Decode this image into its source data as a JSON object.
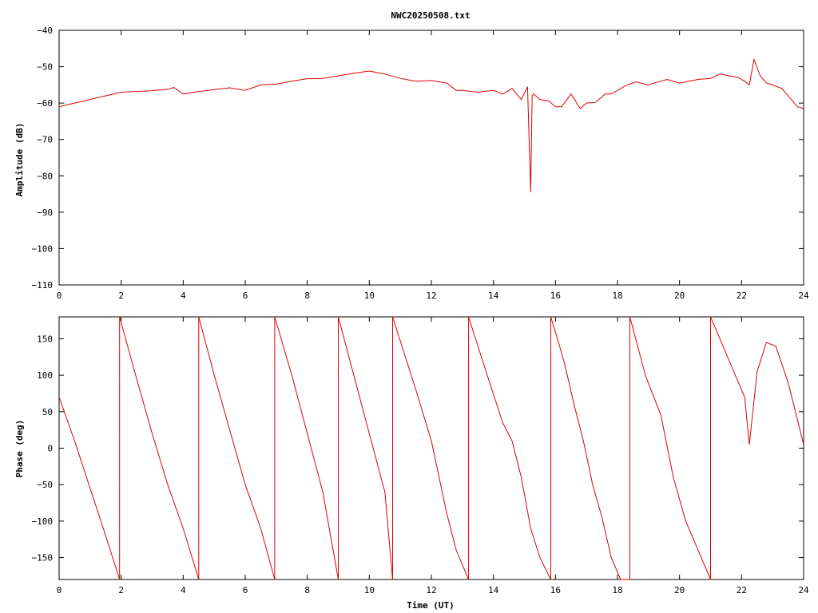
{
  "title": "NWC20250508.txt",
  "colors": {
    "series": "#dd0000",
    "axes": "#000000",
    "background": "#ffffff"
  },
  "chart_data": [
    {
      "type": "line",
      "title": "NWC20250508.txt",
      "xlabel": "",
      "ylabel": "Amplitude (dB)",
      "xlim": [
        0,
        24
      ],
      "ylim": [
        -110,
        -40
      ],
      "xticks": [
        "0",
        "2",
        "4",
        "6",
        "8",
        "10",
        "12",
        "14",
        "16",
        "18",
        "20",
        "22",
        "24"
      ],
      "yticks": [
        "−40",
        "−50",
        "−60",
        "−70",
        "−80",
        "−90",
        "−100",
        "−110"
      ],
      "grid": false,
      "legend": "none",
      "series": [
        {
          "x": [
            0,
            0.5,
            1,
            1.5,
            2,
            2.5,
            3,
            3.5,
            3.7,
            4,
            4.5,
            5,
            5.5,
            6,
            6.5,
            7,
            7.5,
            8,
            8.5,
            9,
            9.5,
            10,
            10.5,
            11,
            11.5,
            12,
            12.5,
            12.8,
            13,
            13.5,
            14,
            14.3,
            14.6,
            14.9,
            15.1,
            15.2,
            15.25,
            15.3,
            15.5,
            15.8,
            16,
            16.2,
            16.5,
            16.8,
            17,
            17.3,
            17.6,
            17.8,
            18,
            18.3,
            18.6,
            19,
            19.3,
            19.6,
            20,
            20.3,
            20.6,
            21,
            21.3,
            21.6,
            21.9,
            22.1,
            22.25,
            22.4,
            22.6,
            22.8,
            23,
            23.3,
            23.6,
            23.8,
            24
          ],
          "y": [
            -61,
            -60,
            -59,
            -58,
            -57,
            -56.8,
            -56.6,
            -56.2,
            -55.7,
            -57.5,
            -56.8,
            -56.3,
            -55.8,
            -56.5,
            -55,
            -54.8,
            -54,
            -53.3,
            -53.2,
            -52.5,
            -51.8,
            -51.2,
            -52,
            -53.2,
            -54,
            -53.8,
            -54.5,
            -56.5,
            -56.5,
            -57,
            -56.5,
            -57.5,
            -56,
            -59,
            -55.5,
            -84.5,
            -58,
            -57.5,
            -59,
            -59.5,
            -61,
            -61,
            -57.5,
            -61.5,
            -60,
            -59.8,
            -57.5,
            -57.5,
            -56.5,
            -55,
            -54.2,
            -55,
            -54.2,
            -53.5,
            -54.5,
            -54,
            -53.5,
            -53.2,
            -52,
            -52.5,
            -53,
            -54,
            -55,
            -48,
            -52.5,
            -54.5,
            -55,
            -56,
            -59,
            -61,
            -61.5
          ]
        }
      ]
    },
    {
      "type": "line",
      "title": "",
      "xlabel": "Time (UT)",
      "ylabel": "Phase (deg)",
      "xlim": [
        0,
        24
      ],
      "ylim": [
        -180,
        180
      ],
      "xticks": [
        "0",
        "2",
        "4",
        "6",
        "8",
        "10",
        "12",
        "14",
        "16",
        "18",
        "20",
        "22",
        "24"
      ],
      "yticks": [
        "150",
        "100",
        "50",
        "0",
        "−50",
        "−100",
        "−150"
      ],
      "grid": false,
      "legend": "none",
      "series": [
        {
          "x": [
            0,
            0.5,
            1,
            1.5,
            1.95,
            1.95,
            2.5,
            3,
            3.5,
            4,
            4.5,
            4.5,
            5,
            5.5,
            6,
            6.5,
            6.95,
            6.95,
            7.5,
            8,
            8.5,
            9.0,
            9.0,
            9.5,
            10,
            10.5,
            10.75,
            10.75,
            11.5,
            12,
            12.5,
            12.8,
            13.2,
            13.2,
            13.8,
            14.3,
            14.6,
            14.9,
            15.2,
            15.5,
            15.85,
            15.85,
            16.1,
            16.3,
            16.6,
            16.9,
            17.2,
            17.5,
            17.8,
            18.1,
            18.4,
            18.4,
            18.9,
            19.4,
            19.8,
            20.2,
            20.6,
            21.0,
            21.0,
            21.1,
            21.5,
            21.9,
            22.1,
            22.25,
            22.5,
            22.8,
            23.1,
            23.5,
            24
          ],
          "y": [
            70,
            10,
            -55,
            -120,
            -180,
            180,
            95,
            20,
            -50,
            -110,
            -180,
            180,
            100,
            25,
            -50,
            -110,
            -180,
            180,
            100,
            20,
            -60,
            -180,
            180,
            100,
            20,
            -60,
            -180,
            180,
            80,
            10,
            -90,
            -140,
            -180,
            180,
            100,
            35,
            10,
            -40,
            -110,
            -150,
            -180,
            180,
            145,
            115,
            60,
            10,
            -50,
            -95,
            -150,
            -180,
            -180,
            180,
            100,
            45,
            -40,
            -100,
            -140,
            -180,
            180,
            170,
            130,
            90,
            70,
            5,
            105,
            145,
            140,
            90,
            5
          ]
        }
      ]
    }
  ]
}
